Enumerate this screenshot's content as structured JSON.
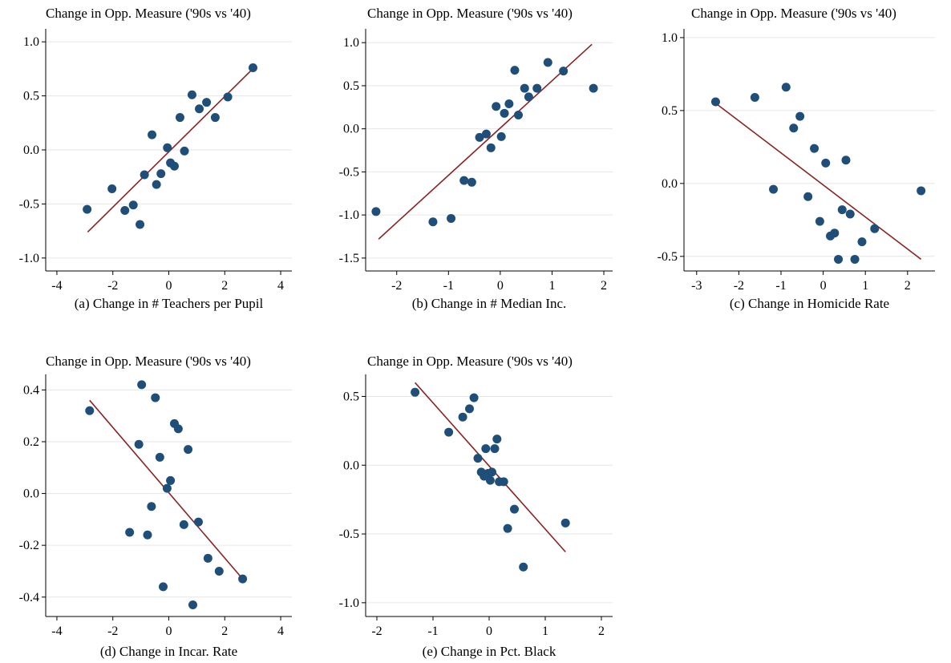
{
  "style": {
    "marker_color": "#1f4e79",
    "fit_line_color": "#8b2323",
    "grid_color": "#e6e6e6",
    "axis_color": "#000000"
  },
  "chart_data": [
    {
      "type": "scatter",
      "title": "Change in Opp. Measure ('90s vs '40)",
      "caption": "(a) Change in # Teachers per Pupil",
      "xlabel": "",
      "ylabel": "",
      "xlim": [
        -4.4,
        4.4
      ],
      "ylim": [
        -1.12,
        1.12
      ],
      "xticks": [
        -4,
        -2,
        0,
        2,
        4
      ],
      "xtick_labels": [
        "-4",
        "-2",
        "0",
        "2",
        "4"
      ],
      "yticks": [
        -1.0,
        -0.5,
        0.0,
        0.5,
        1.0
      ],
      "ytick_labels": [
        "-1.0",
        "-0.5",
        "0.0",
        "0.5",
        "1.0"
      ],
      "grid": "horizontal",
      "points": [
        {
          "x": -2.92,
          "y": -0.55
        },
        {
          "x": -2.03,
          "y": -0.36
        },
        {
          "x": -1.57,
          "y": -0.56
        },
        {
          "x": -1.27,
          "y": -0.51
        },
        {
          "x": -1.03,
          "y": -0.69
        },
        {
          "x": -0.87,
          "y": -0.23
        },
        {
          "x": -0.6,
          "y": 0.14
        },
        {
          "x": -0.44,
          "y": -0.32
        },
        {
          "x": -0.28,
          "y": -0.22
        },
        {
          "x": -0.05,
          "y": 0.02
        },
        {
          "x": 0.06,
          "y": -0.12
        },
        {
          "x": 0.2,
          "y": -0.15
        },
        {
          "x": 0.4,
          "y": 0.3
        },
        {
          "x": 0.56,
          "y": -0.01
        },
        {
          "x": 0.83,
          "y": 0.51
        },
        {
          "x": 1.09,
          "y": 0.38
        },
        {
          "x": 1.35,
          "y": 0.44
        },
        {
          "x": 1.66,
          "y": 0.3
        },
        {
          "x": 2.11,
          "y": 0.49
        },
        {
          "x": 3.01,
          "y": 0.76
        }
      ],
      "fit_line": {
        "x": [
          -2.9,
          3.0
        ],
        "y": [
          -0.76,
          0.75
        ]
      }
    },
    {
      "type": "scatter",
      "title": "Change in Opp. Measure ('90s vs '40)",
      "caption": "(b) Change in # Median Inc.",
      "xlabel": "",
      "ylabel": "",
      "xlim": [
        -2.6,
        2.17
      ],
      "ylim": [
        -1.65,
        1.16
      ],
      "xticks": [
        -2,
        -1,
        0,
        1,
        2
      ],
      "xtick_labels": [
        "-2",
        "-1",
        "0",
        "1",
        "2"
      ],
      "yticks": [
        -1.5,
        -1.0,
        -0.5,
        0.0,
        0.5,
        1.0
      ],
      "ytick_labels": [
        "-1.5",
        "-1.0",
        "-0.5",
        "0.0",
        "0.5",
        "1.0"
      ],
      "grid": "horizontal",
      "points": [
        {
          "x": -2.4,
          "y": -0.96
        },
        {
          "x": -1.3,
          "y": -1.08
        },
        {
          "x": -0.95,
          "y": -1.04
        },
        {
          "x": -0.7,
          "y": -0.6
        },
        {
          "x": -0.55,
          "y": -0.62
        },
        {
          "x": -0.4,
          "y": -0.1
        },
        {
          "x": -0.27,
          "y": -0.06
        },
        {
          "x": -0.18,
          "y": -0.22
        },
        {
          "x": -0.08,
          "y": 0.26
        },
        {
          "x": 0.02,
          "y": -0.09
        },
        {
          "x": 0.08,
          "y": 0.18
        },
        {
          "x": 0.17,
          "y": 0.29
        },
        {
          "x": 0.28,
          "y": 0.68
        },
        {
          "x": 0.35,
          "y": 0.16
        },
        {
          "x": 0.47,
          "y": 0.47
        },
        {
          "x": 0.55,
          "y": 0.37
        },
        {
          "x": 0.71,
          "y": 0.47
        },
        {
          "x": 0.92,
          "y": 0.77
        },
        {
          "x": 1.22,
          "y": 0.67
        },
        {
          "x": 1.8,
          "y": 0.47
        }
      ],
      "fit_line": {
        "x": [
          -2.35,
          1.77
        ],
        "y": [
          -1.28,
          0.98
        ]
      }
    },
    {
      "type": "scatter",
      "title": "Change in Opp. Measure ('90s vs '40)",
      "caption": "(c) Change in Homicide Rate",
      "xlabel": "",
      "ylabel": "",
      "xlim": [
        -3.3,
        2.65
      ],
      "ylim": [
        -0.6,
        1.06
      ],
      "xticks": [
        -3,
        -2,
        -1,
        0,
        1,
        2
      ],
      "xtick_labels": [
        "-3",
        "-2",
        "-1",
        "0",
        "1",
        "2"
      ],
      "yticks": [
        -0.5,
        0.0,
        0.5,
        1.0
      ],
      "ytick_labels": [
        "-0.5",
        "0.0",
        "0.5",
        "1.0"
      ],
      "grid": "horizontal",
      "points": [
        {
          "x": -2.55,
          "y": 0.56
        },
        {
          "x": -1.62,
          "y": 0.59
        },
        {
          "x": -1.18,
          "y": -0.04
        },
        {
          "x": -0.88,
          "y": 0.66
        },
        {
          "x": -0.7,
          "y": 0.38
        },
        {
          "x": -0.55,
          "y": 0.46
        },
        {
          "x": -0.36,
          "y": -0.09
        },
        {
          "x": -0.21,
          "y": 0.24
        },
        {
          "x": -0.08,
          "y": -0.26
        },
        {
          "x": 0.06,
          "y": 0.14
        },
        {
          "x": 0.17,
          "y": -0.36
        },
        {
          "x": 0.27,
          "y": -0.34
        },
        {
          "x": 0.36,
          "y": -0.52
        },
        {
          "x": 0.45,
          "y": -0.18
        },
        {
          "x": 0.54,
          "y": 0.16
        },
        {
          "x": 0.64,
          "y": -0.21
        },
        {
          "x": 0.75,
          "y": -0.52
        },
        {
          "x": 0.92,
          "y": -0.4
        },
        {
          "x": 1.22,
          "y": -0.31
        },
        {
          "x": 2.32,
          "y": -0.05
        }
      ],
      "fit_line": {
        "x": [
          -2.55,
          2.32
        ],
        "y": [
          0.55,
          -0.52
        ]
      }
    },
    {
      "type": "scatter",
      "title": "Change in Opp. Measure ('90s vs '40)",
      "caption": "(d) Change in Incar. Rate",
      "xlabel": "",
      "ylabel": "",
      "xlim": [
        -4.4,
        4.4
      ],
      "ylim": [
        -0.475,
        0.46
      ],
      "xticks": [
        -4,
        -2,
        0,
        2,
        4
      ],
      "xtick_labels": [
        "-4",
        "-2",
        "0",
        "2",
        "4"
      ],
      "yticks": [
        -0.4,
        -0.2,
        0.0,
        0.2,
        0.4
      ],
      "ytick_labels": [
        "-0.4",
        "-0.2",
        "0.0",
        "0.2",
        "0.4"
      ],
      "grid": "horizontal",
      "points": [
        {
          "x": -2.83,
          "y": 0.32
        },
        {
          "x": -1.4,
          "y": -0.15
        },
        {
          "x": -1.07,
          "y": 0.19
        },
        {
          "x": -0.97,
          "y": 0.42
        },
        {
          "x": -0.76,
          "y": -0.16
        },
        {
          "x": -0.62,
          "y": -0.05
        },
        {
          "x": -0.48,
          "y": 0.37
        },
        {
          "x": -0.32,
          "y": 0.14
        },
        {
          "x": -0.2,
          "y": -0.36
        },
        {
          "x": -0.06,
          "y": 0.02
        },
        {
          "x": 0.06,
          "y": 0.05
        },
        {
          "x": 0.2,
          "y": 0.27
        },
        {
          "x": 0.34,
          "y": 0.25
        },
        {
          "x": 0.54,
          "y": -0.12
        },
        {
          "x": 0.69,
          "y": 0.17
        },
        {
          "x": 0.86,
          "y": -0.43
        },
        {
          "x": 1.06,
          "y": -0.11
        },
        {
          "x": 1.4,
          "y": -0.25
        },
        {
          "x": 1.8,
          "y": -0.3
        },
        {
          "x": 2.64,
          "y": -0.33
        }
      ],
      "fit_line": {
        "x": [
          -2.83,
          2.64
        ],
        "y": [
          0.36,
          -0.33
        ]
      }
    },
    {
      "type": "scatter",
      "title": "Change in Opp. Measure ('90s vs '40)",
      "caption": "(e) Change in Pct. Black",
      "xlabel": "",
      "ylabel": "",
      "xlim": [
        -2.2,
        2.2
      ],
      "ylim": [
        -1.1,
        0.66
      ],
      "xticks": [
        -2,
        -1,
        0,
        1,
        2
      ],
      "xtick_labels": [
        "-2",
        "-1",
        "0",
        "1",
        "2"
      ],
      "yticks": [
        -1.0,
        -0.5,
        0.0,
        0.5
      ],
      "ytick_labels": [
        "-1.0",
        "-0.5",
        "0.0",
        "0.5"
      ],
      "grid": "horizontal",
      "points": [
        {
          "x": -1.32,
          "y": 0.53
        },
        {
          "x": -0.72,
          "y": 0.24
        },
        {
          "x": -0.47,
          "y": 0.35
        },
        {
          "x": -0.35,
          "y": 0.41
        },
        {
          "x": -0.27,
          "y": 0.49
        },
        {
          "x": -0.2,
          "y": 0.05
        },
        {
          "x": -0.14,
          "y": -0.05
        },
        {
          "x": -0.09,
          "y": -0.08
        },
        {
          "x": -0.06,
          "y": 0.12
        },
        {
          "x": -0.02,
          "y": -0.06
        },
        {
          "x": 0.02,
          "y": -0.11
        },
        {
          "x": 0.05,
          "y": -0.05
        },
        {
          "x": 0.1,
          "y": 0.12
        },
        {
          "x": 0.14,
          "y": 0.19
        },
        {
          "x": 0.18,
          "y": -0.12
        },
        {
          "x": 0.26,
          "y": -0.12
        },
        {
          "x": 0.33,
          "y": -0.46
        },
        {
          "x": 0.45,
          "y": -0.32
        },
        {
          "x": 0.61,
          "y": -0.74
        },
        {
          "x": 1.36,
          "y": -0.42
        }
      ],
      "fit_line": {
        "x": [
          -1.32,
          1.36
        ],
        "y": [
          0.6,
          -0.63
        ]
      }
    }
  ]
}
